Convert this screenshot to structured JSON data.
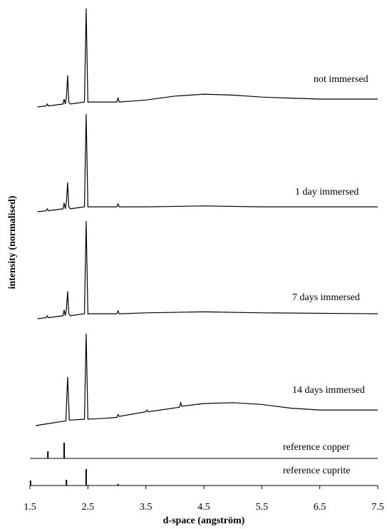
{
  "chart_data": {
    "type": "line",
    "xlabel": "d-space (angström)",
    "ylabel": "intensity (normalised)",
    "xlim": [
      1.5,
      7.5
    ],
    "xticks": [
      1.5,
      2.5,
      3.5,
      4.5,
      5.5,
      6.5,
      7.5
    ],
    "color": "#000000",
    "series": [
      {
        "name": "not immersed",
        "type": "line",
        "x": [
          1.63,
          1.78,
          1.8,
          1.82,
          2.07,
          2.09,
          2.11,
          2.13,
          2.15,
          2.17,
          2.2,
          2.44,
          2.47,
          2.5,
          2.6,
          3.0,
          3.02,
          3.04,
          3.5,
          4.0,
          4.5,
          5.0,
          5.5,
          6.0,
          6.5,
          7.5
        ],
        "values": [
          0,
          0.01,
          0.03,
          0.01,
          0.03,
          0.08,
          0.03,
          0.1,
          0.32,
          0.05,
          0.03,
          0.05,
          1,
          0.05,
          0.05,
          0.05,
          0.09,
          0.05,
          0.07,
          0.11,
          0.13,
          0.12,
          0.1,
          0.09,
          0.08,
          0.08
        ]
      },
      {
        "name": "1 day immersed",
        "type": "line",
        "x": [
          1.63,
          1.78,
          1.8,
          1.82,
          2.07,
          2.09,
          2.11,
          2.13,
          2.15,
          2.17,
          2.2,
          2.44,
          2.47,
          2.5,
          2.6,
          3.0,
          3.02,
          3.04,
          3.5,
          4.5,
          5.5,
          7.5
        ],
        "values": [
          0,
          0.01,
          0.03,
          0.01,
          0.03,
          0.09,
          0.03,
          0.1,
          0.3,
          0.05,
          0.03,
          0.05,
          1,
          0.05,
          0.05,
          0.05,
          0.08,
          0.05,
          0.05,
          0.06,
          0.05,
          0.05
        ]
      },
      {
        "name": "7 days immersed",
        "type": "line",
        "x": [
          1.63,
          1.78,
          1.8,
          1.82,
          2.07,
          2.09,
          2.11,
          2.13,
          2.15,
          2.17,
          2.2,
          2.44,
          2.47,
          2.5,
          2.6,
          3.0,
          3.02,
          3.04,
          3.5,
          4.5,
          5.5,
          7.5
        ],
        "values": [
          0,
          0.01,
          0.03,
          0.01,
          0.03,
          0.09,
          0.03,
          0.1,
          0.28,
          0.05,
          0.03,
          0.05,
          1,
          0.05,
          0.05,
          0.05,
          0.08,
          0.05,
          0.06,
          0.07,
          0.06,
          0.05
        ]
      },
      {
        "name": "14 days immersed",
        "type": "line",
        "x": [
          1.6,
          1.8,
          2.0,
          2.12,
          2.15,
          2.18,
          2.44,
          2.47,
          2.5,
          2.8,
          3.0,
          3.02,
          3.04,
          3.5,
          3.52,
          3.54,
          4.08,
          4.1,
          4.12,
          4.5,
          5.0,
          5.5,
          6.0,
          6.5,
          7.5
        ],
        "values": [
          0,
          0.02,
          0.04,
          0.05,
          0.53,
          0.06,
          0.07,
          1,
          0.07,
          0.08,
          0.09,
          0.12,
          0.1,
          0.15,
          0.17,
          0.15,
          0.2,
          0.25,
          0.21,
          0.24,
          0.25,
          0.23,
          0.19,
          0.17,
          0.17
        ]
      },
      {
        "name": "reference copper",
        "type": "stick",
        "x": [
          1.81,
          2.09
        ],
        "values": [
          0.45,
          1
        ]
      },
      {
        "name": "reference cuprite",
        "type": "stick",
        "x": [
          1.51,
          2.13,
          2.47,
          3.02
        ],
        "values": [
          0.3,
          0.35,
          1,
          0.1
        ]
      }
    ]
  }
}
